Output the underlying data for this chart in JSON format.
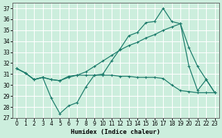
{
  "xlabel": "Humidex (Indice chaleur)",
  "bg_color": "#cceedd",
  "grid_color": "#ffffff",
  "line_color": "#1a7a6a",
  "xlim": [
    -0.5,
    23.5
  ],
  "ylim": [
    27,
    37.5
  ],
  "yticks": [
    27,
    28,
    29,
    30,
    31,
    32,
    33,
    34,
    35,
    36,
    37
  ],
  "xticks": [
    0,
    1,
    2,
    3,
    4,
    5,
    6,
    7,
    8,
    9,
    10,
    11,
    12,
    13,
    14,
    15,
    16,
    17,
    18,
    19,
    20,
    21,
    22,
    23
  ],
  "line1_x": [
    0,
    1,
    2,
    3,
    4,
    5,
    6,
    7,
    8,
    9,
    10,
    11,
    12,
    13,
    14,
    15,
    16,
    17,
    18,
    19,
    20,
    21,
    22,
    23
  ],
  "line1_y": [
    31.5,
    31.1,
    30.5,
    30.7,
    28.8,
    27.4,
    28.1,
    28.4,
    29.8,
    30.9,
    31.0,
    32.2,
    33.3,
    34.5,
    34.8,
    35.7,
    35.8,
    37.0,
    35.8,
    35.6,
    31.7,
    29.5,
    30.5,
    29.3
  ],
  "line2_x": [
    0,
    1,
    2,
    3,
    4,
    5,
    6,
    7,
    8,
    9,
    10,
    11,
    12,
    13,
    14,
    15,
    16,
    17,
    18,
    19,
    20,
    21,
    22,
    23
  ],
  "line2_y": [
    31.5,
    31.1,
    30.5,
    30.7,
    30.5,
    30.4,
    30.8,
    30.9,
    30.9,
    30.9,
    30.9,
    30.9,
    30.8,
    30.8,
    30.7,
    30.7,
    30.7,
    30.6,
    30.0,
    29.5,
    29.4,
    29.3,
    29.3,
    29.3
  ],
  "line3_x": [
    0,
    1,
    2,
    3,
    4,
    5,
    6,
    7,
    8,
    9,
    10,
    11,
    12,
    13,
    14,
    15,
    16,
    17,
    18,
    19,
    20,
    21,
    22,
    23
  ],
  "line3_y": [
    31.5,
    31.1,
    30.5,
    30.7,
    30.5,
    30.4,
    30.7,
    30.9,
    31.2,
    31.7,
    32.2,
    32.7,
    33.2,
    33.6,
    33.9,
    34.3,
    34.6,
    35.0,
    35.3,
    35.6,
    33.4,
    31.7,
    30.5,
    29.3
  ]
}
